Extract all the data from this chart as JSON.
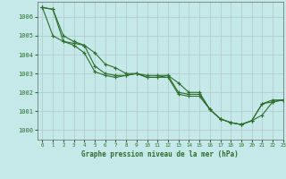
{
  "title": "Graphe pression niveau de la mer (hPa)",
  "background_color": "#c5e8e8",
  "grid_color": "#b0c8c8",
  "line_color": "#2d6e2d",
  "ylim": [
    999.5,
    1006.8
  ],
  "xlim": [
    -0.5,
    23
  ],
  "yticks": [
    1000,
    1001,
    1002,
    1003,
    1004,
    1005,
    1006
  ],
  "xticks": [
    0,
    1,
    2,
    3,
    4,
    5,
    6,
    7,
    8,
    9,
    10,
    11,
    12,
    13,
    14,
    15,
    16,
    17,
    18,
    19,
    20,
    21,
    22,
    23
  ],
  "series": [
    [
      1006.5,
      1006.4,
      1005.0,
      1004.7,
      1004.5,
      1004.1,
      1003.5,
      1003.3,
      1003.0,
      1003.0,
      1002.9,
      1002.9,
      1002.9,
      1002.5,
      1002.0,
      1002.0,
      1001.1,
      1000.6,
      1000.4,
      1000.3,
      1000.5,
      1001.4,
      1001.6,
      1001.6
    ],
    [
      1006.5,
      1006.4,
      1004.7,
      1004.6,
      1004.5,
      1003.4,
      1003.0,
      1002.9,
      1002.9,
      1003.0,
      1002.8,
      1002.8,
      1002.9,
      1002.0,
      1001.9,
      1001.9,
      1001.1,
      1000.6,
      1000.4,
      1000.3,
      1000.5,
      1000.8,
      1001.5,
      1001.6
    ],
    [
      1006.5,
      1005.0,
      1004.7,
      1004.5,
      1004.1,
      1003.1,
      1002.9,
      1002.8,
      1002.9,
      1003.0,
      1002.8,
      1002.8,
      1002.8,
      1001.9,
      1001.8,
      1001.8,
      1001.1,
      1000.6,
      1000.4,
      1000.3,
      1000.5,
      1001.4,
      1001.5,
      1001.6
    ]
  ]
}
